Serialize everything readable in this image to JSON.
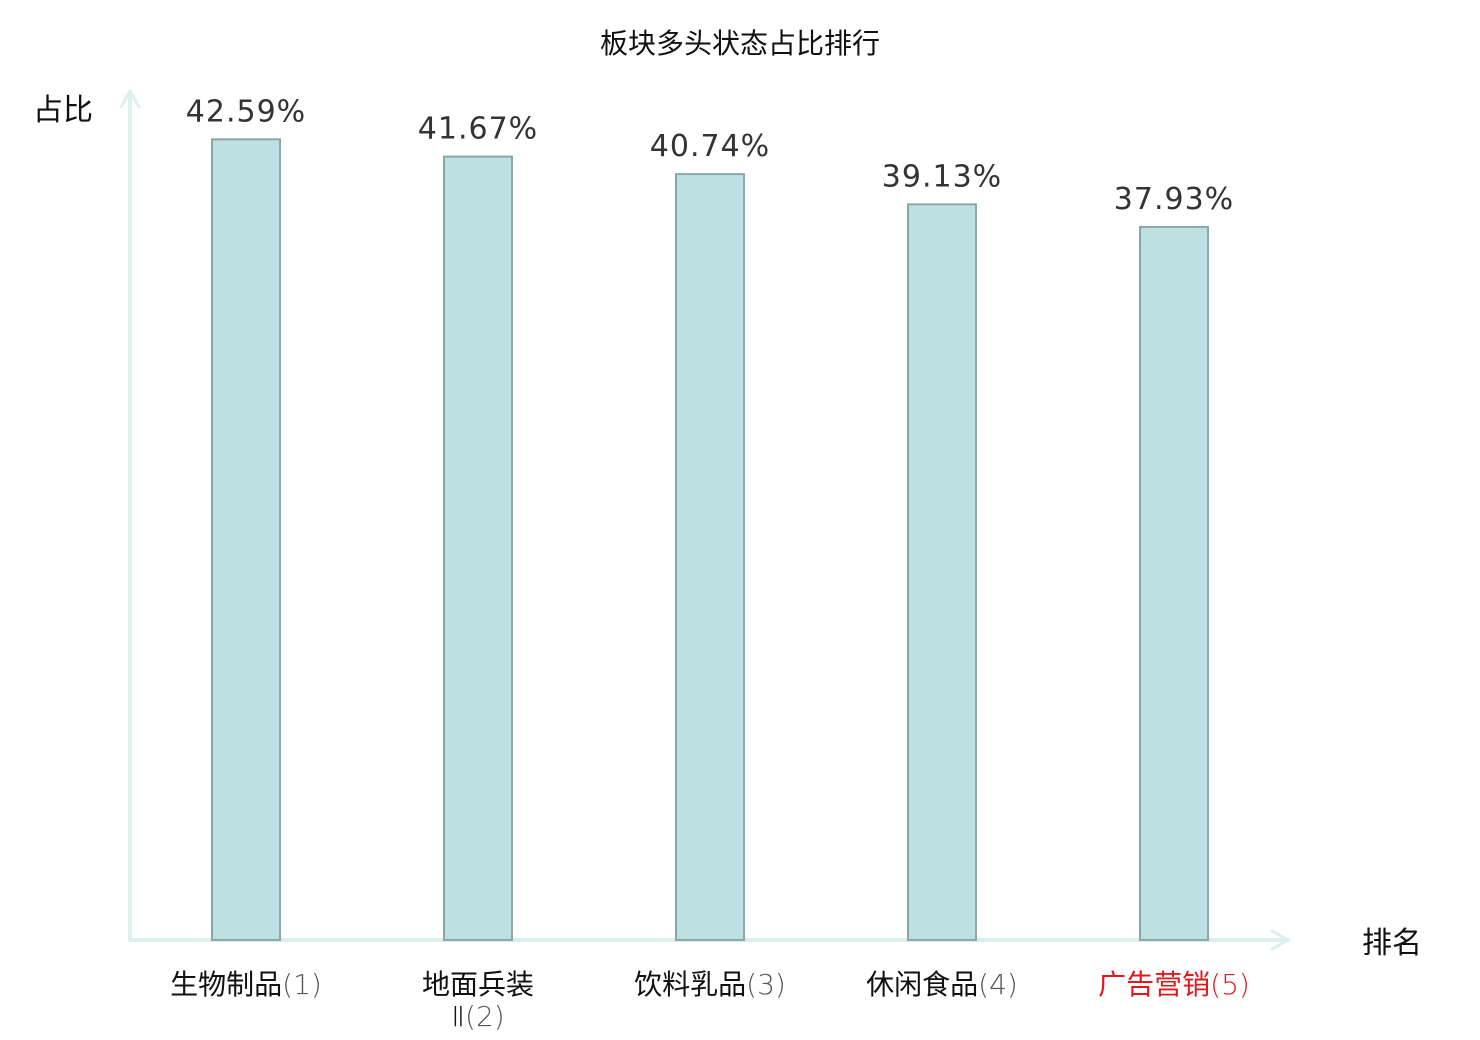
{
  "colors": {
    "bar_fill": "#bde0e2",
    "bar_stroke": "#8aa8a9",
    "axis": "#dcf0ee",
    "text": "#111111",
    "value_text": "#333333",
    "rank_text": "#555555",
    "highlight": "#e0191d"
  },
  "chart_data": {
    "type": "bar",
    "title": "板块多头状态占比排行",
    "ylabel": "占比",
    "xlabel": "排名",
    "ylim": [
      0,
      45
    ],
    "grid": false,
    "categories": [
      {
        "name": "生物制品",
        "rank": "(1)",
        "value": 42.59,
        "label": "42.59%",
        "highlight": false
      },
      {
        "name": "地面兵装",
        "name_line2": "Ⅱ",
        "rank": "(2)",
        "value": 41.67,
        "label": "41.67%",
        "highlight": false
      },
      {
        "name": "饮料乳品",
        "rank": "(3)",
        "value": 40.74,
        "label": "40.74%",
        "highlight": false
      },
      {
        "name": "休闲食品",
        "rank": "(4)",
        "value": 39.13,
        "label": "39.13%",
        "highlight": false
      },
      {
        "name": "广告营销",
        "rank": "(5)",
        "value": 37.93,
        "label": "37.93%",
        "highlight": true
      }
    ]
  }
}
